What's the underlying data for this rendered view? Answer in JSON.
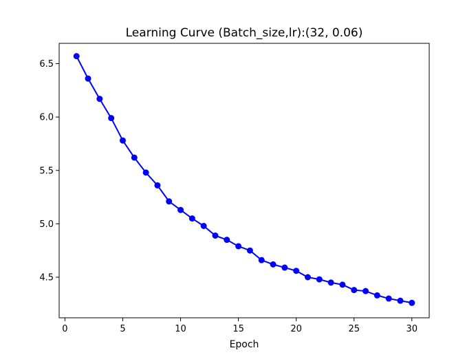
{
  "chart_data": {
    "type": "line",
    "title": "Learning Curve (Batch_size,lr):(32, 0.06)",
    "xlabel": "Epoch",
    "ylabel": "",
    "xlim": [
      -0.5,
      31.5
    ],
    "ylim": [
      4.12,
      6.69
    ],
    "x_ticks": [
      0,
      5,
      10,
      15,
      20,
      25,
      30
    ],
    "y_ticks": [
      4.5,
      5.0,
      5.5,
      6.0,
      6.5
    ],
    "grid": false,
    "series": [
      {
        "color": "#0000ff",
        "marker": "circle",
        "x": [
          1,
          2,
          3,
          4,
          5,
          6,
          7,
          8,
          9,
          10,
          11,
          12,
          13,
          14,
          15,
          16,
          17,
          18,
          19,
          20,
          21,
          22,
          23,
          24,
          25,
          26,
          27,
          28,
          29,
          30
        ],
        "y": [
          6.57,
          6.36,
          6.17,
          5.99,
          5.78,
          5.62,
          5.48,
          5.36,
          5.21,
          5.13,
          5.05,
          4.98,
          4.89,
          4.85,
          4.79,
          4.75,
          4.66,
          4.62,
          4.59,
          4.56,
          4.5,
          4.48,
          4.45,
          4.43,
          4.38,
          4.37,
          4.33,
          4.3,
          4.28,
          4.26
        ]
      }
    ]
  }
}
